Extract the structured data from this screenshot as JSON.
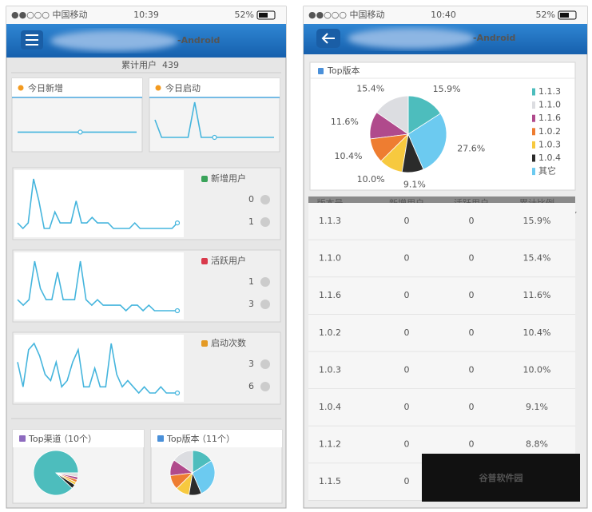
{
  "left": {
    "status": {
      "carrier": "●●○○○ 中国移动",
      "time": "10:39",
      "battery": "52%"
    },
    "header": {
      "title": "-Android"
    },
    "total": {
      "label": "累计用户",
      "value": "439"
    },
    "today_cards": [
      {
        "title": "今日新增",
        "values": [
          0,
          0,
          0,
          0,
          0,
          0,
          0,
          0,
          0,
          0,
          0,
          0,
          0,
          0,
          0,
          0,
          0,
          0,
          0,
          0
        ],
        "color": "#45b5dd"
      },
      {
        "title": "今日启动",
        "values": [
          2,
          0,
          0,
          0,
          0,
          0,
          4,
          0,
          0,
          0,
          0,
          0,
          0,
          0,
          0,
          0,
          0,
          0,
          0
        ],
        "color": "#45b5dd"
      }
    ],
    "metric_cards": [
      {
        "title": "新增用户",
        "today": "0",
        "yesterday": "1",
        "color": "#45b5dd",
        "values": [
          2,
          1,
          2,
          10,
          6,
          1,
          1,
          4,
          2,
          2,
          2,
          6,
          2,
          2,
          3,
          2,
          2,
          2,
          1,
          1,
          1,
          1,
          2,
          1,
          1,
          1,
          1,
          1,
          1,
          1,
          2
        ]
      },
      {
        "title": "活跃用户",
        "today": "1",
        "yesterday": "3",
        "color": "#45b5dd",
        "values": [
          3,
          2,
          3,
          10,
          5,
          3,
          3,
          8,
          3,
          3,
          3,
          10,
          3,
          2,
          3,
          2,
          2,
          2,
          2,
          1,
          2,
          2,
          1,
          2,
          1,
          1,
          1,
          1,
          1
        ]
      },
      {
        "title": "启动次数",
        "today": "3",
        "yesterday": "6",
        "color": "#45b5dd",
        "values": [
          6,
          2,
          8,
          9,
          7,
          4,
          3,
          6,
          2,
          3,
          6,
          8,
          2,
          2,
          5,
          2,
          2,
          9,
          4,
          2,
          3,
          2,
          1,
          2,
          1,
          1,
          2,
          1,
          1,
          1
        ]
      }
    ],
    "top_cards": [
      {
        "title": "Top渠道",
        "count": "（10个）",
        "values": [
          88,
          3,
          2,
          2,
          2,
          3
        ],
        "colors": [
          "#4dbdbd",
          "#222222",
          "#f2c53d",
          "#ee7d31",
          "#b04a8c",
          "#dddddd"
        ]
      },
      {
        "title": "Top版本",
        "count": "（11个）"
      }
    ]
  },
  "right": {
    "status": {
      "carrier": "●●○○○ 中国移动",
      "time": "10:40",
      "battery": "52%"
    },
    "header": {
      "title": "-Android"
    },
    "pie": {
      "title": "Top版本",
      "labels": [
        "1.1.3",
        "1.1.0",
        "1.1.6",
        "1.0.2",
        "1.0.3",
        "1.0.4",
        "其它"
      ],
      "values": [
        15.9,
        15.4,
        11.6,
        10.4,
        10.0,
        9.1,
        27.6
      ],
      "value_labels": [
        "15.9%",
        "15.4%",
        "11.6%",
        "10.4%",
        "10.0%",
        "9.1%",
        "27.6%"
      ],
      "colors": [
        "#4dbdbd",
        "#dcdde1",
        "#b04a8c",
        "#ee7d31",
        "#f7c93f",
        "#2b2b2b",
        "#6ccaf0"
      ]
    },
    "table": {
      "header": [
        "版本号",
        "新增用户",
        "活跃用户",
        "累计比例"
      ],
      "rows": [
        [
          "1.1.3",
          "0",
          "0",
          "15.9%"
        ],
        [
          "1.1.0",
          "0",
          "0",
          "15.4%"
        ],
        [
          "1.1.6",
          "0",
          "0",
          "11.6%"
        ],
        [
          "1.0.2",
          "0",
          "0",
          "10.4%"
        ],
        [
          "1.0.3",
          "0",
          "0",
          "10.0%"
        ],
        [
          "1.0.4",
          "0",
          "0",
          "9.1%"
        ],
        [
          "1.1.2",
          "0",
          "0",
          "8.8%"
        ],
        [
          "1.1.5",
          "0"
        ]
      ]
    }
  },
  "watermark": "谷普软件园"
}
